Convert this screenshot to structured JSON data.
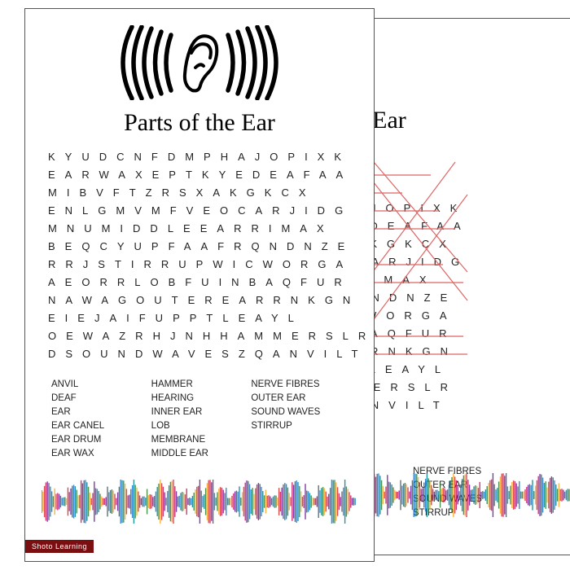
{
  "title": "Parts of the Ear",
  "grid_rows": [
    "KYUDCNFDMPHAJOPIXK",
    "EARWAXEPTKYEDEAFAA",
    "MIBVFTZRSXAKGKCX",
    "ENLGMVMFVEOCARJIDG",
    "MNUMIDDLEEARRIMAX",
    "BEQCYUPFAAFRQNDNZE",
    "RRJSTIRRUPWICWORGA",
    "AEORRLOBFUINBAQFUR",
    "NAWAGOUTEREARRNKGN",
    "EIEJAIFUPPTLEAYL",
    "OEWAZRHJNHHAMMERSLR",
    "DSOUNDWAVESZQANVILT"
  ],
  "word_cols": [
    [
      "ANVIL",
      "DEAF",
      "EAR",
      "EAR CANEL",
      "EAR DRUM",
      "EAR WAX"
    ],
    [
      "HAMMER",
      "HEARING",
      "INNER EAR",
      "LOB",
      "MEMBRANE",
      "MIDDLE EAR"
    ],
    [
      "NERVE FIBRES",
      "OUTER EAR",
      "SOUND WAVES",
      "STIRRUP"
    ]
  ],
  "badge": "Shoto Learning",
  "back_title_fragment": "the Ear",
  "back_grid_rows": [
    "HAJOPIXK",
    "YEDEAFAA",
    "XAKGKCX",
    "OCARJIDG",
    "RRIMAX",
    "RQNDNZE",
    "ICWORGA",
    "NBAQFUR",
    "ARRNKGN",
    "PTLEAYL",
    "MMERSLR",
    "QANVILT"
  ],
  "back_wordlist": [
    "NERVE FIBRES",
    "OUTER EAR",
    "SOUND WAVES",
    "STIRRUP"
  ],
  "colors": {
    "border": "#555555",
    "text": "#222222",
    "badge_bg": "#7a0f12",
    "badge_fg": "#ffffff",
    "solution_line": "#d66"
  },
  "wave_colors": [
    "#2e7d32",
    "#c2185b",
    "#1976d2",
    "#f9a825",
    "#6a1b9a",
    "#00838f",
    "#d32f2f",
    "#455a64"
  ]
}
